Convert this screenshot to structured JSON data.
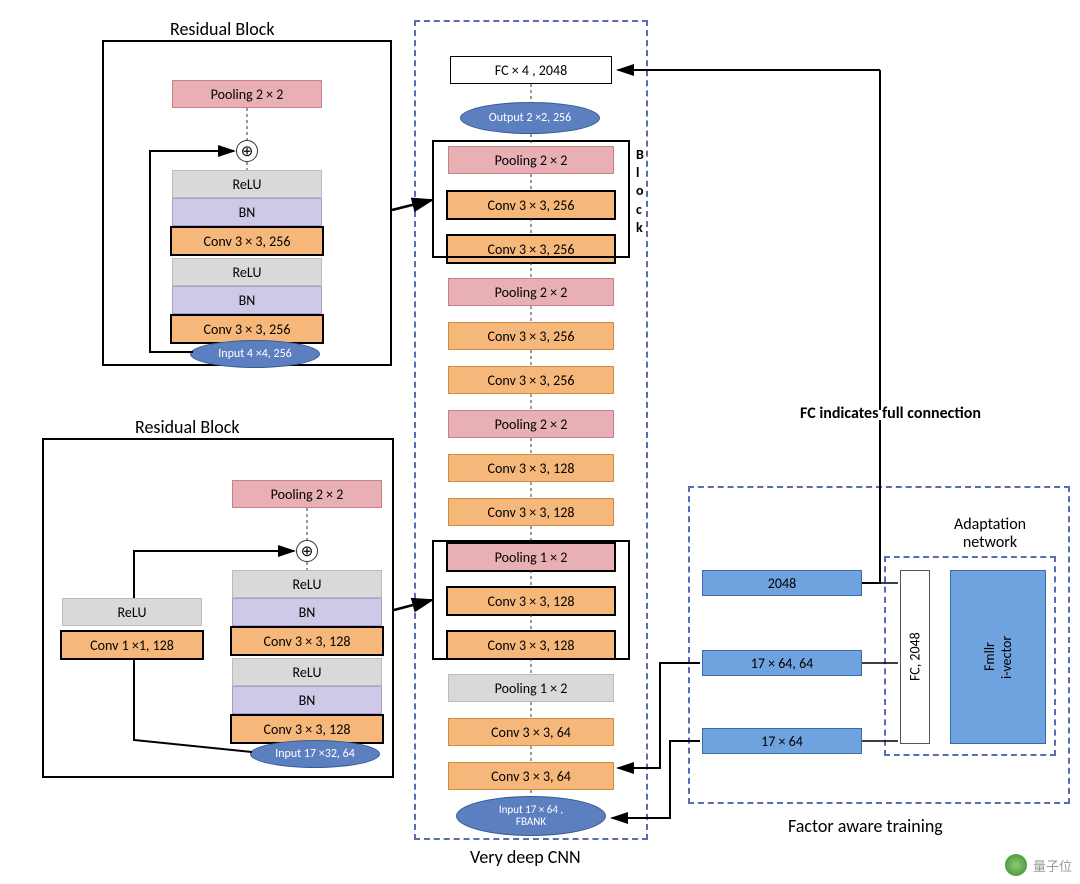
{
  "colors": {
    "conv": "#f5b77a",
    "conv_border": "#d48a3a",
    "pool": "#e8b0b5",
    "pool_border": "#c98088",
    "relu": "#d9d9d9",
    "bn": "#cfc8e6",
    "white": "#ffffff",
    "blue": "#6fa3e0",
    "oval": "#5c7fbf",
    "text": "#000000",
    "dashed": "#5a6bb5",
    "adapt_blue": "#6fa3e0"
  },
  "typography": {
    "title_fontsize": 18,
    "layer_fontsize": 14,
    "oval_fontsize": 12,
    "font_family": "Calibri"
  },
  "labels": {
    "residual1_title": "Residual Block",
    "residual2_title": "Residual Block",
    "center_title": "Very deep CNN",
    "right_title": "Factor aware training",
    "adapt_title": "Adaptation network",
    "fc_note": "FC indicates full connection",
    "block_label": "B\nl\no\nc\nk",
    "watermark": "量子位"
  },
  "residual1": {
    "pool": "Pooling 2 × 2",
    "layers": [
      "ReLU",
      "BN",
      "Conv 3 × 3, 256",
      "ReLU",
      "BN",
      "Conv 3 × 3, 256"
    ],
    "input": "Input 4 ×4, 256"
  },
  "residual2": {
    "pool": "Pooling 2 × 2",
    "layers": [
      "ReLU",
      "BN",
      "Conv 3 × 3, 128",
      "ReLU",
      "BN",
      "Conv 3 × 3, 128"
    ],
    "side_relu": "ReLU",
    "side_conv": "Conv 1 ×1, 128",
    "input": "Input 17 ×32, 64"
  },
  "center": {
    "fc": "FC × 4 , 2048",
    "output_oval": "Output 2 ×2, 256",
    "stack": [
      {
        "t": "Pooling 2 × 2",
        "k": "pool"
      },
      {
        "t": "Conv 3 × 3, 256",
        "k": "conv_thick"
      },
      {
        "t": "Conv 3 × 3, 256",
        "k": "conv_thick"
      },
      {
        "t": "Pooling 2 × 2",
        "k": "pool"
      },
      {
        "t": "Conv 3 × 3, 256",
        "k": "conv"
      },
      {
        "t": "Conv 3 × 3, 256",
        "k": "conv"
      },
      {
        "t": "Pooling 2 × 2",
        "k": "pool"
      },
      {
        "t": "Conv 3 × 3, 128",
        "k": "conv"
      },
      {
        "t": "Conv 3 × 3, 128",
        "k": "conv"
      },
      {
        "t": "Pooling 1 × 2",
        "k": "pool_thick"
      },
      {
        "t": "Conv 3 × 3, 128",
        "k": "conv_thick"
      },
      {
        "t": "Conv 3 × 3, 128",
        "k": "conv_thick"
      },
      {
        "t": "Pooling 1 × 2",
        "k": "pool_plain"
      },
      {
        "t": "Conv 3 × 3, 64",
        "k": "conv"
      },
      {
        "t": "Conv 3 × 3, 64",
        "k": "conv"
      }
    ],
    "input_oval": "Input 17 × 64 ,\nFBANK"
  },
  "right": {
    "boxes": [
      "2048",
      "17 × 64, 64",
      "17 × 64"
    ],
    "adapt_fc": "FC, 2048",
    "adapt_fmllr": "Fmllr\ni-vector"
  }
}
